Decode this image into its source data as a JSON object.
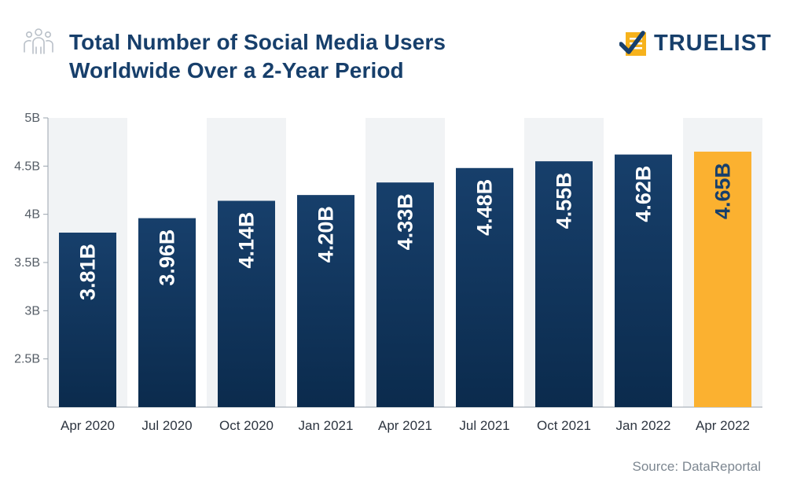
{
  "header": {
    "title_line1": "Total Number of Social Media Users",
    "title_line2": "Worldwide Over a 2-Year Period",
    "title_icon": "people-icon"
  },
  "logo": {
    "text": "TRUELIST",
    "icon": "checklist-icon",
    "accent_color": "#f6b21c",
    "brand_color": "#173f6b"
  },
  "source": "Source: DataReportal",
  "chart_data": {
    "type": "bar",
    "title": "Total Number of Social Media Users Worldwide Over a 2-Year Period",
    "xlabel": "",
    "ylabel": "",
    "categories": [
      "Apr 2020",
      "Jul 2020",
      "Oct 2020",
      "Jan 2021",
      "Apr 2021",
      "Jul 2021",
      "Oct 2021",
      "Jan 2022",
      "Apr 2022"
    ],
    "values": [
      3.81,
      3.96,
      4.14,
      4.2,
      4.33,
      4.48,
      4.55,
      4.62,
      4.65
    ],
    "value_labels": [
      "3.81B",
      "3.96B",
      "4.14B",
      "4.20B",
      "4.33B",
      "4.48B",
      "4.55B",
      "4.62B",
      "4.65B"
    ],
    "ylim": [
      2,
      5
    ],
    "yticks": [
      2.5,
      3,
      3.5,
      4,
      4.5,
      5
    ],
    "ytick_labels": [
      "2.5B",
      "3B",
      "3.5B",
      "4B",
      "4.5B",
      "5B"
    ],
    "highlight_index": 8,
    "colors": {
      "bar_top": "#173f6b",
      "bar_bottom": "#0b2b4d",
      "highlight": "#fbb130",
      "band": "#f1f3f5"
    }
  }
}
